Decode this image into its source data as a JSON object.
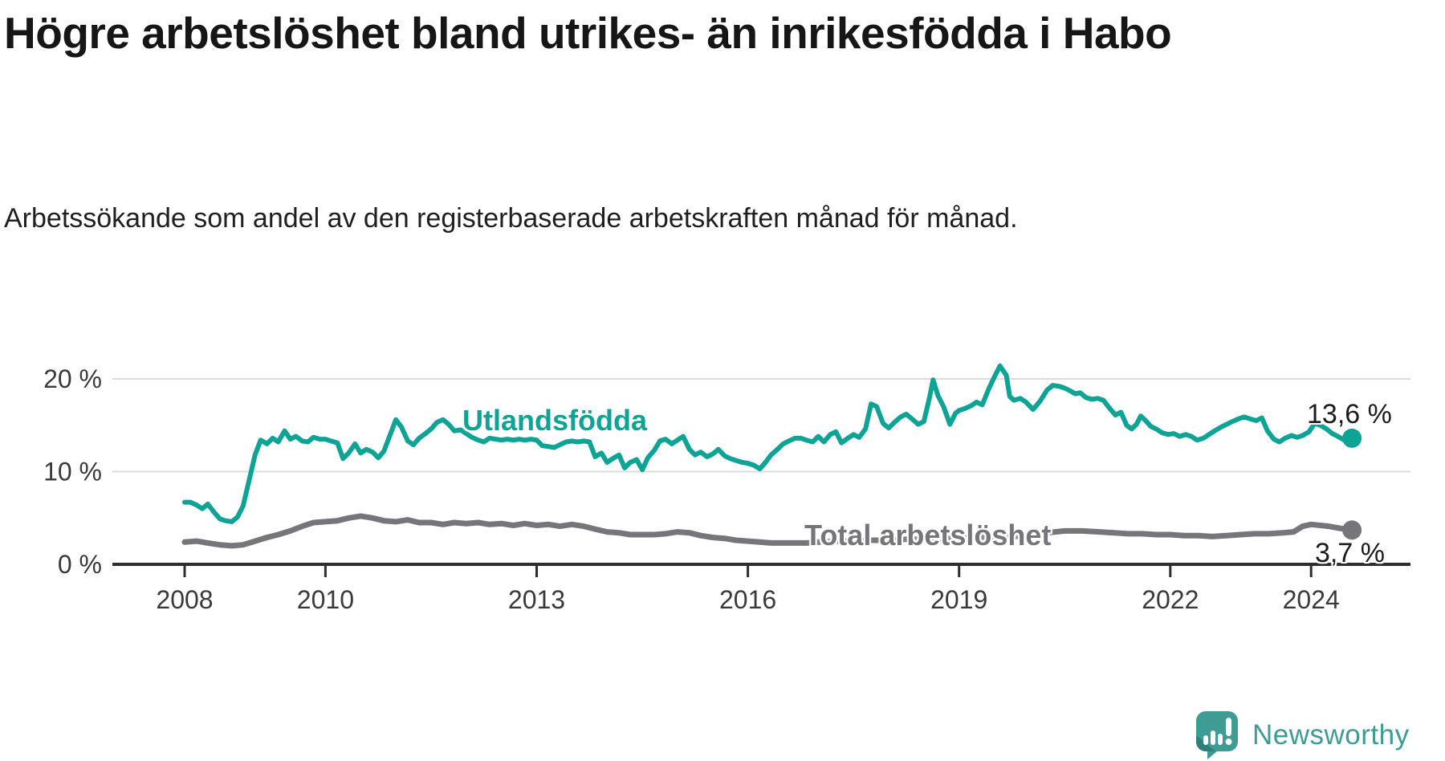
{
  "title": "Högre arbetslöshet bland utrikes- än inrikesfödda i Habo",
  "subtitle": "Arbetssökande som andel av den registerbaserade arbetskraften månad för månad.",
  "logo": {
    "text": "Newsworthy",
    "icon": "newsworthy-speech-bubble-chart-icon"
  },
  "colors": {
    "foreign_born_line": "#0da395",
    "total_line": "#76767a",
    "axis": "#2e2e2e",
    "grid": "#dcdcdc",
    "axis_text": "#3a3a3a",
    "title_text": "#161616",
    "logo_teal": "#3e9c95"
  },
  "chart_data": {
    "type": "line",
    "title": "Högre arbetslöshet bland utrikes- än inrikesfödda i Habo",
    "subtitle": "Arbetssökande som andel av den registerbaserade arbetskraften månad för månad.",
    "unit": "%",
    "grid": true,
    "x_axis": {
      "tick_labels": [
        "2008",
        "2010",
        "2013",
        "2016",
        "2019",
        "2022",
        "2024"
      ],
      "tick_years": [
        2008,
        2010,
        2013,
        2016,
        2019,
        2022,
        2024
      ],
      "range_years": [
        2007.6,
        2025.2
      ]
    },
    "y_axis": {
      "tick_labels": [
        "20 %",
        "10 %",
        "0 %"
      ],
      "tick_values": [
        20,
        10,
        0
      ],
      "range": [
        0,
        21.5
      ]
    },
    "series": [
      {
        "name": "Utlandsfödda",
        "color": "#0da395",
        "end_label": "13,6 %",
        "end_value": 13.6,
        "points": [
          [
            2008.0,
            6.7
          ],
          [
            2008.08,
            6.7
          ],
          [
            2008.17,
            6.4
          ],
          [
            2008.25,
            6.0
          ],
          [
            2008.33,
            6.5
          ],
          [
            2008.42,
            5.6
          ],
          [
            2008.5,
            4.9
          ],
          [
            2008.58,
            4.7
          ],
          [
            2008.67,
            4.6
          ],
          [
            2008.75,
            5.1
          ],
          [
            2008.83,
            6.3
          ],
          [
            2008.92,
            9.2
          ],
          [
            2009.0,
            11.8
          ],
          [
            2009.08,
            13.4
          ],
          [
            2009.17,
            13.0
          ],
          [
            2009.25,
            13.6
          ],
          [
            2009.33,
            13.2
          ],
          [
            2009.42,
            14.4
          ],
          [
            2009.5,
            13.5
          ],
          [
            2009.58,
            13.8
          ],
          [
            2009.67,
            13.3
          ],
          [
            2009.75,
            13.2
          ],
          [
            2009.83,
            13.7
          ],
          [
            2009.92,
            13.5
          ],
          [
            2010.0,
            13.5
          ],
          [
            2010.08,
            13.3
          ],
          [
            2010.17,
            13.1
          ],
          [
            2010.25,
            11.4
          ],
          [
            2010.33,
            12.0
          ],
          [
            2010.42,
            13.0
          ],
          [
            2010.5,
            12.0
          ],
          [
            2010.58,
            12.4
          ],
          [
            2010.67,
            12.1
          ],
          [
            2010.75,
            11.5
          ],
          [
            2010.83,
            12.2
          ],
          [
            2010.92,
            14.0
          ],
          [
            2011.0,
            15.6
          ],
          [
            2011.08,
            14.8
          ],
          [
            2011.17,
            13.3
          ],
          [
            2011.25,
            12.9
          ],
          [
            2011.33,
            13.6
          ],
          [
            2011.42,
            14.1
          ],
          [
            2011.5,
            14.6
          ],
          [
            2011.58,
            15.3
          ],
          [
            2011.67,
            15.6
          ],
          [
            2011.75,
            15.1
          ],
          [
            2011.83,
            14.4
          ],
          [
            2011.92,
            14.5
          ],
          [
            2012.0,
            14.1
          ],
          [
            2012.08,
            13.7
          ],
          [
            2012.17,
            13.4
          ],
          [
            2012.25,
            13.2
          ],
          [
            2012.33,
            13.6
          ],
          [
            2012.42,
            13.5
          ],
          [
            2012.5,
            13.4
          ],
          [
            2012.58,
            13.5
          ],
          [
            2012.67,
            13.4
          ],
          [
            2012.75,
            13.5
          ],
          [
            2012.83,
            13.4
          ],
          [
            2012.92,
            13.5
          ],
          [
            2013.0,
            13.4
          ],
          [
            2013.08,
            12.8
          ],
          [
            2013.17,
            12.7
          ],
          [
            2013.25,
            12.6
          ],
          [
            2013.33,
            12.9
          ],
          [
            2013.42,
            13.2
          ],
          [
            2013.5,
            13.3
          ],
          [
            2013.58,
            13.2
          ],
          [
            2013.67,
            13.3
          ],
          [
            2013.75,
            13.2
          ],
          [
            2013.83,
            11.6
          ],
          [
            2013.92,
            12.0
          ],
          [
            2014.0,
            11.0
          ],
          [
            2014.08,
            11.4
          ],
          [
            2014.17,
            11.8
          ],
          [
            2014.25,
            10.4
          ],
          [
            2014.33,
            11.0
          ],
          [
            2014.42,
            11.3
          ],
          [
            2014.5,
            10.2
          ],
          [
            2014.58,
            11.5
          ],
          [
            2014.67,
            12.3
          ],
          [
            2014.75,
            13.3
          ],
          [
            2014.83,
            13.5
          ],
          [
            2014.92,
            13.0
          ],
          [
            2015.0,
            13.4
          ],
          [
            2015.08,
            13.8
          ],
          [
            2015.17,
            12.4
          ],
          [
            2015.25,
            11.8
          ],
          [
            2015.33,
            12.1
          ],
          [
            2015.42,
            11.6
          ],
          [
            2015.5,
            11.9
          ],
          [
            2015.58,
            12.4
          ],
          [
            2015.67,
            11.7
          ],
          [
            2015.75,
            11.4
          ],
          [
            2015.83,
            11.2
          ],
          [
            2015.92,
            11.0
          ],
          [
            2016.0,
            10.9
          ],
          [
            2016.08,
            10.7
          ],
          [
            2016.17,
            10.3
          ],
          [
            2016.25,
            11.0
          ],
          [
            2016.33,
            11.8
          ],
          [
            2016.42,
            12.4
          ],
          [
            2016.5,
            13.0
          ],
          [
            2016.58,
            13.3
          ],
          [
            2016.67,
            13.6
          ],
          [
            2016.75,
            13.6
          ],
          [
            2016.83,
            13.4
          ],
          [
            2016.92,
            13.2
          ],
          [
            2017.0,
            13.8
          ],
          [
            2017.08,
            13.2
          ],
          [
            2017.17,
            14.0
          ],
          [
            2017.25,
            14.3
          ],
          [
            2017.33,
            13.1
          ],
          [
            2017.42,
            13.6
          ],
          [
            2017.5,
            14.0
          ],
          [
            2017.58,
            13.7
          ],
          [
            2017.67,
            14.6
          ],
          [
            2017.75,
            17.3
          ],
          [
            2017.83,
            17.0
          ],
          [
            2017.92,
            15.2
          ],
          [
            2018.0,
            14.7
          ],
          [
            2018.08,
            15.3
          ],
          [
            2018.17,
            15.9
          ],
          [
            2018.25,
            16.2
          ],
          [
            2018.33,
            15.7
          ],
          [
            2018.42,
            15.1
          ],
          [
            2018.5,
            15.4
          ],
          [
            2018.58,
            18.0
          ],
          [
            2018.63,
            19.9
          ],
          [
            2018.7,
            18.2
          ],
          [
            2018.78,
            17.0
          ],
          [
            2018.87,
            15.1
          ],
          [
            2018.95,
            16.3
          ],
          [
            2019.0,
            16.6
          ],
          [
            2019.08,
            16.8
          ],
          [
            2019.17,
            17.1
          ],
          [
            2019.25,
            17.5
          ],
          [
            2019.33,
            17.2
          ],
          [
            2019.42,
            18.9
          ],
          [
            2019.5,
            20.2
          ],
          [
            2019.58,
            21.4
          ],
          [
            2019.67,
            20.4
          ],
          [
            2019.72,
            18.1
          ],
          [
            2019.78,
            17.7
          ],
          [
            2019.87,
            17.9
          ],
          [
            2019.95,
            17.5
          ],
          [
            2020.05,
            16.7
          ],
          [
            2020.15,
            17.6
          ],
          [
            2020.25,
            18.8
          ],
          [
            2020.33,
            19.3
          ],
          [
            2020.42,
            19.2
          ],
          [
            2020.5,
            19.0
          ],
          [
            2020.58,
            18.7
          ],
          [
            2020.65,
            18.4
          ],
          [
            2020.72,
            18.5
          ],
          [
            2020.8,
            18.0
          ],
          [
            2020.88,
            17.8
          ],
          [
            2020.97,
            17.9
          ],
          [
            2021.05,
            17.7
          ],
          [
            2021.13,
            16.9
          ],
          [
            2021.22,
            16.1
          ],
          [
            2021.3,
            16.4
          ],
          [
            2021.38,
            15.0
          ],
          [
            2021.45,
            14.6
          ],
          [
            2021.52,
            15.1
          ],
          [
            2021.58,
            16.0
          ],
          [
            2021.65,
            15.5
          ],
          [
            2021.72,
            14.9
          ],
          [
            2021.8,
            14.6
          ],
          [
            2021.88,
            14.2
          ],
          [
            2021.97,
            14.0
          ],
          [
            2022.05,
            14.1
          ],
          [
            2022.13,
            13.8
          ],
          [
            2022.22,
            14.0
          ],
          [
            2022.3,
            13.8
          ],
          [
            2022.38,
            13.4
          ],
          [
            2022.47,
            13.6
          ],
          [
            2022.55,
            14.0
          ],
          [
            2022.63,
            14.4
          ],
          [
            2022.72,
            14.8
          ],
          [
            2022.8,
            15.1
          ],
          [
            2022.88,
            15.4
          ],
          [
            2022.97,
            15.7
          ],
          [
            2023.05,
            15.9
          ],
          [
            2023.13,
            15.7
          ],
          [
            2023.22,
            15.5
          ],
          [
            2023.3,
            15.8
          ],
          [
            2023.38,
            14.4
          ],
          [
            2023.47,
            13.5
          ],
          [
            2023.55,
            13.2
          ],
          [
            2023.63,
            13.6
          ],
          [
            2023.72,
            13.9
          ],
          [
            2023.8,
            13.7
          ],
          [
            2023.88,
            13.9
          ],
          [
            2023.97,
            14.3
          ],
          [
            2024.05,
            15.2
          ],
          [
            2024.13,
            15.0
          ],
          [
            2024.22,
            14.6
          ],
          [
            2024.3,
            14.1
          ],
          [
            2024.38,
            13.8
          ],
          [
            2024.47,
            13.4
          ],
          [
            2024.58,
            13.6
          ]
        ]
      },
      {
        "name": "Total arbetslöshet",
        "color": "#76767a",
        "end_label": "3,7 %",
        "end_value": 3.7,
        "points": [
          [
            2008.0,
            2.4
          ],
          [
            2008.17,
            2.5
          ],
          [
            2008.33,
            2.3
          ],
          [
            2008.5,
            2.1
          ],
          [
            2008.67,
            2.0
          ],
          [
            2008.83,
            2.1
          ],
          [
            2009.0,
            2.5
          ],
          [
            2009.17,
            2.9
          ],
          [
            2009.33,
            3.2
          ],
          [
            2009.5,
            3.6
          ],
          [
            2009.67,
            4.1
          ],
          [
            2009.83,
            4.5
          ],
          [
            2010.0,
            4.6
          ],
          [
            2010.17,
            4.7
          ],
          [
            2010.33,
            5.0
          ],
          [
            2010.5,
            5.2
          ],
          [
            2010.67,
            5.0
          ],
          [
            2010.83,
            4.7
          ],
          [
            2011.0,
            4.6
          ],
          [
            2011.17,
            4.8
          ],
          [
            2011.33,
            4.5
          ],
          [
            2011.5,
            4.5
          ],
          [
            2011.67,
            4.3
          ],
          [
            2011.83,
            4.5
          ],
          [
            2012.0,
            4.4
          ],
          [
            2012.17,
            4.5
          ],
          [
            2012.33,
            4.3
          ],
          [
            2012.5,
            4.4
          ],
          [
            2012.67,
            4.2
          ],
          [
            2012.83,
            4.4
          ],
          [
            2013.0,
            4.2
          ],
          [
            2013.17,
            4.3
          ],
          [
            2013.33,
            4.1
          ],
          [
            2013.5,
            4.3
          ],
          [
            2013.67,
            4.1
          ],
          [
            2013.83,
            3.8
          ],
          [
            2014.0,
            3.5
          ],
          [
            2014.17,
            3.4
          ],
          [
            2014.33,
            3.2
          ],
          [
            2014.5,
            3.2
          ],
          [
            2014.67,
            3.2
          ],
          [
            2014.83,
            3.3
          ],
          [
            2015.0,
            3.5
          ],
          [
            2015.17,
            3.4
          ],
          [
            2015.33,
            3.1
          ],
          [
            2015.5,
            2.9
          ],
          [
            2015.67,
            2.8
          ],
          [
            2015.83,
            2.6
          ],
          [
            2016.0,
            2.5
          ],
          [
            2016.17,
            2.4
          ],
          [
            2016.33,
            2.3
          ],
          [
            2016.5,
            2.3
          ],
          [
            2016.67,
            2.3
          ],
          [
            2016.83,
            2.3
          ],
          [
            2017.0,
            2.4
          ],
          [
            2017.25,
            2.5
          ],
          [
            2017.5,
            2.5
          ],
          [
            2017.75,
            2.6
          ],
          [
            2018.0,
            2.6
          ],
          [
            2018.25,
            2.7
          ],
          [
            2018.5,
            2.7
          ],
          [
            2018.75,
            2.8
          ],
          [
            2019.0,
            2.8
          ],
          [
            2019.25,
            2.9
          ],
          [
            2019.5,
            2.9
          ],
          [
            2019.75,
            3.0
          ],
          [
            2020.0,
            3.1
          ],
          [
            2020.25,
            3.4
          ],
          [
            2020.5,
            3.6
          ],
          [
            2020.75,
            3.6
          ],
          [
            2021.0,
            3.5
          ],
          [
            2021.2,
            3.4
          ],
          [
            2021.4,
            3.3
          ],
          [
            2021.6,
            3.3
          ],
          [
            2021.8,
            3.2
          ],
          [
            2022.0,
            3.2
          ],
          [
            2022.2,
            3.1
          ],
          [
            2022.4,
            3.1
          ],
          [
            2022.6,
            3.0
          ],
          [
            2022.8,
            3.1
          ],
          [
            2023.0,
            3.2
          ],
          [
            2023.2,
            3.3
          ],
          [
            2023.4,
            3.3
          ],
          [
            2023.6,
            3.4
          ],
          [
            2023.75,
            3.5
          ],
          [
            2023.88,
            4.1
          ],
          [
            2024.0,
            4.3
          ],
          [
            2024.13,
            4.2
          ],
          [
            2024.25,
            4.1
          ],
          [
            2024.4,
            3.9
          ],
          [
            2024.58,
            3.7
          ]
        ]
      }
    ]
  }
}
